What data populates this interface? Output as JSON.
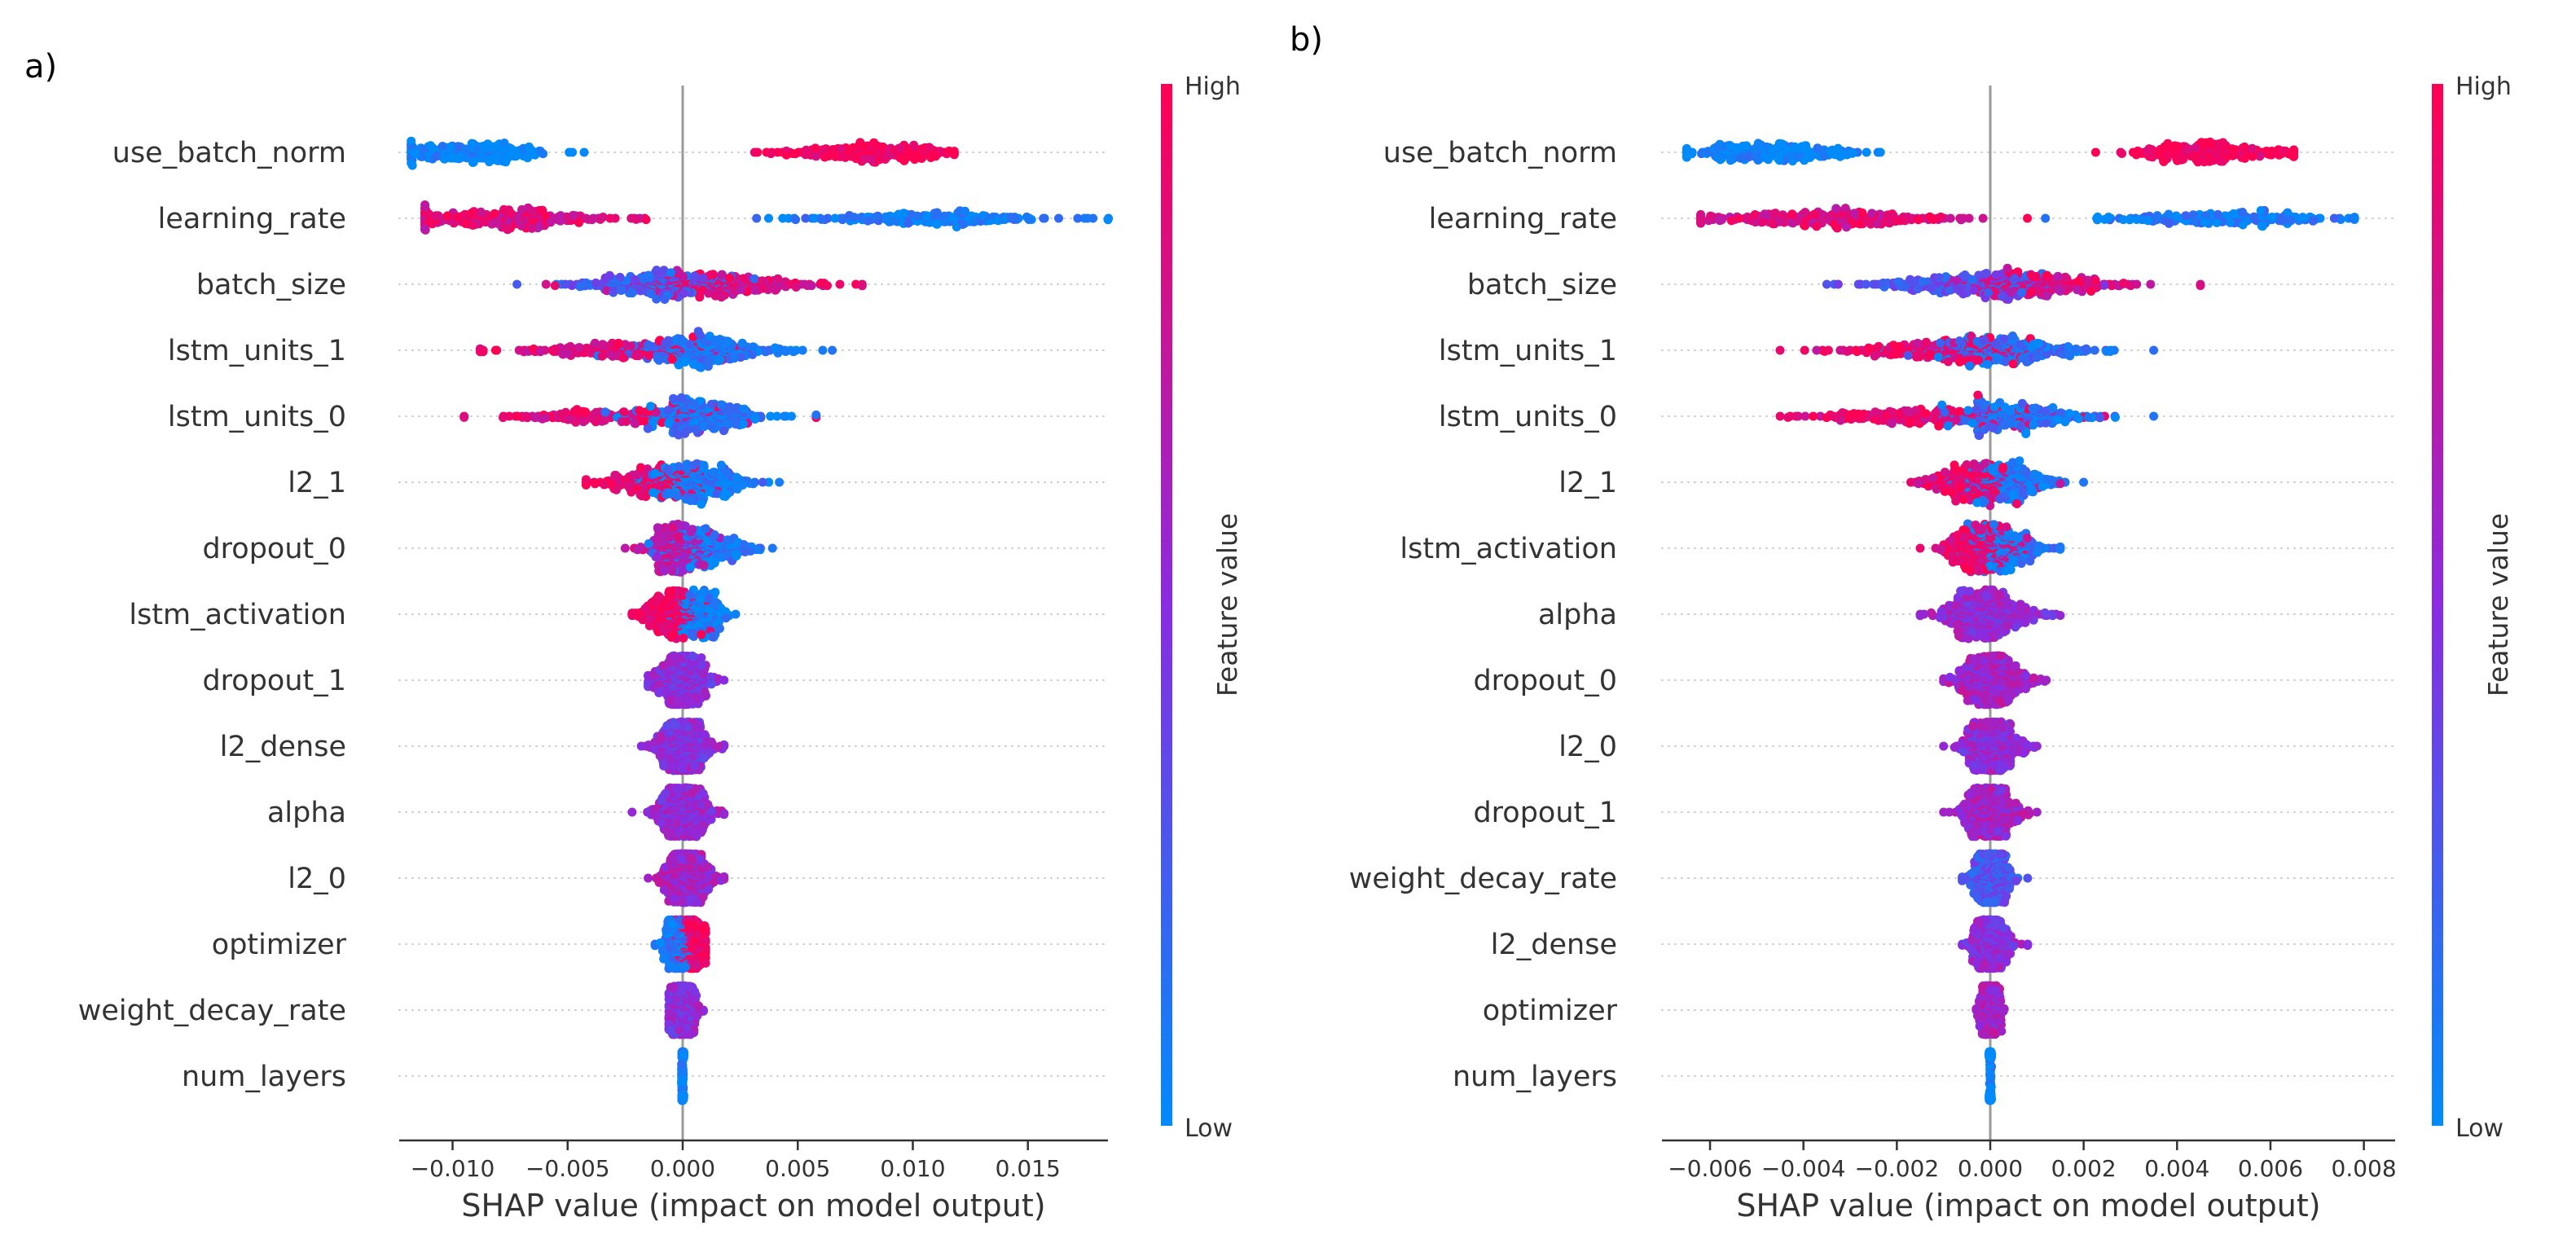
{
  "chart_data": [
    {
      "type": "scatter",
      "subtype": "shap-beeswarm",
      "panel_label": "a)",
      "xlabel": "SHAP value (impact on model output)",
      "xlim": [
        -0.0133,
        0.0175
      ],
      "xticks": [
        -0.01,
        -0.005,
        0.0,
        0.005,
        0.01,
        0.015
      ],
      "xtick_labels": [
        "−0.010",
        "−0.005",
        "0.000",
        "0.005",
        "0.010",
        "0.015"
      ],
      "features": [
        {
          "name": "use_batch_norm",
          "min": -0.0118,
          "max": 0.0118,
          "clusters": [
            {
              "center": -0.009,
              "spread": 0.0017,
              "color": 0.0,
              "weight": 0.5
            },
            {
              "center": 0.0083,
              "spread": 0.0018,
              "color": 1.0,
              "weight": 0.5
            }
          ]
        },
        {
          "name": "learning_rate",
          "min": -0.0112,
          "max": 0.0185,
          "clusters": [
            {
              "center": -0.0075,
              "spread": 0.0022,
              "color": 0.85,
              "weight": 0.58
            },
            {
              "center": 0.011,
              "spread": 0.0026,
              "color": 0.05,
              "weight": 0.42
            }
          ]
        },
        {
          "name": "batch_size",
          "min": -0.0072,
          "max": 0.0078,
          "clusters": [
            {
              "center": -0.0012,
              "spread": 0.0018,
              "color": 0.25,
              "weight": 0.5
            },
            {
              "center": 0.0018,
              "spread": 0.0022,
              "color": 0.85,
              "weight": 0.5
            }
          ]
        },
        {
          "name": "lstm_units_1",
          "min": -0.0088,
          "max": 0.0065,
          "clusters": [
            {
              "center": -0.0028,
              "spread": 0.0022,
              "color": 0.9,
              "weight": 0.4
            },
            {
              "center": 0.0008,
              "spread": 0.0016,
              "color": 0.12,
              "weight": 0.6
            }
          ]
        },
        {
          "name": "lstm_units_0",
          "min": -0.0095,
          "max": 0.0058,
          "clusters": [
            {
              "center": -0.0025,
              "spread": 0.0025,
              "color": 0.9,
              "weight": 0.4
            },
            {
              "center": 0.0008,
              "spread": 0.0014,
              "color": 0.12,
              "weight": 0.6
            }
          ]
        },
        {
          "name": "l2_1",
          "min": -0.0042,
          "max": 0.0042,
          "clusters": [
            {
              "center": -0.0014,
              "spread": 0.0011,
              "color": 0.92,
              "weight": 0.4
            },
            {
              "center": 0.0009,
              "spread": 0.001,
              "color": 0.08,
              "weight": 0.6
            }
          ]
        },
        {
          "name": "dropout_0",
          "min": -0.0025,
          "max": 0.0039,
          "clusters": [
            {
              "center": -0.0003,
              "spread": 0.0007,
              "color": 0.7,
              "weight": 0.6
            },
            {
              "center": 0.0013,
              "spread": 0.0009,
              "color": 0.1,
              "weight": 0.4
            }
          ]
        },
        {
          "name": "lstm_activation",
          "min": -0.0022,
          "max": 0.0023,
          "clusters": [
            {
              "center": -0.0006,
              "spread": 0.0006,
              "color": 0.95,
              "weight": 0.55
            },
            {
              "center": 0.0008,
              "spread": 0.0006,
              "color": 0.05,
              "weight": 0.45
            }
          ]
        },
        {
          "name": "dropout_1",
          "min": -0.0015,
          "max": 0.0018,
          "clusters": [
            {
              "center": 0.0,
              "spread": 0.0006,
              "color": 0.5,
              "weight": 1.0
            }
          ]
        },
        {
          "name": "l2_dense",
          "min": -0.0018,
          "max": 0.0018,
          "clusters": [
            {
              "center": 0.0,
              "spread": 0.0006,
              "color": 0.5,
              "weight": 1.0
            }
          ]
        },
        {
          "name": "alpha",
          "min": -0.0022,
          "max": 0.0018,
          "clusters": [
            {
              "center": 0.0,
              "spread": 0.0006,
              "color": 0.55,
              "weight": 1.0
            }
          ]
        },
        {
          "name": "l2_0",
          "min": -0.0015,
          "max": 0.0018,
          "clusters": [
            {
              "center": 0.0002,
              "spread": 0.0005,
              "color": 0.6,
              "weight": 1.0
            }
          ]
        },
        {
          "name": "optimizer",
          "min": -0.0012,
          "max": 0.001,
          "clusters": [
            {
              "center": -0.0003,
              "spread": 0.0003,
              "color": 0.1,
              "weight": 0.5
            },
            {
              "center": 0.0004,
              "spread": 0.0003,
              "color": 0.95,
              "weight": 0.5
            }
          ]
        },
        {
          "name": "weight_decay_rate",
          "min": -0.0006,
          "max": 0.0009,
          "clusters": [
            {
              "center": 0.0,
              "spread": 0.0003,
              "color": 0.5,
              "weight": 1.0
            }
          ]
        },
        {
          "name": "num_layers",
          "min": -5e-05,
          "max": 5e-05,
          "clusters": [
            {
              "center": 0.0,
              "spread": 2e-05,
              "color": 0.0,
              "weight": 1.0
            }
          ]
        }
      ],
      "colorbar": {
        "title": "Feature value",
        "high": "High",
        "low": "Low"
      }
    },
    {
      "type": "scatter",
      "subtype": "shap-beeswarm",
      "panel_label": "b)",
      "xlabel": "SHAP value (impact on model output)",
      "xlim": [
        -0.0068,
        0.0089
      ],
      "xticks": [
        -0.006,
        -0.004,
        -0.002,
        0.0,
        0.002,
        0.004,
        0.006,
        0.008
      ],
      "xtick_labels": [
        "−0.006",
        "−0.004",
        "−0.002",
        "0.000",
        "0.002",
        "0.004",
        "0.006",
        "0.008"
      ],
      "features": [
        {
          "name": "use_batch_norm",
          "min": -0.0065,
          "max": 0.0065,
          "clusters": [
            {
              "center": -0.0047,
              "spread": 0.0009,
              "color": 0.0,
              "weight": 0.5
            },
            {
              "center": 0.0047,
              "spread": 0.0009,
              "color": 1.0,
              "weight": 0.5
            }
          ]
        },
        {
          "name": "learning_rate",
          "min": -0.0062,
          "max": 0.0078,
          "clusters": [
            {
              "center": -0.0035,
              "spread": 0.0013,
              "color": 0.85,
              "weight": 0.58
            },
            {
              "center": 0.005,
              "spread": 0.0013,
              "color": 0.05,
              "weight": 0.42
            }
          ]
        },
        {
          "name": "batch_size",
          "min": -0.0035,
          "max": 0.0045,
          "clusters": [
            {
              "center": -0.0006,
              "spread": 0.001,
              "color": 0.3,
              "weight": 0.5
            },
            {
              "center": 0.001,
              "spread": 0.001,
              "color": 0.85,
              "weight": 0.5
            }
          ]
        },
        {
          "name": "lstm_units_1",
          "min": -0.0045,
          "max": 0.0035,
          "clusters": [
            {
              "center": -0.0012,
              "spread": 0.001,
              "color": 0.9,
              "weight": 0.45
            },
            {
              "center": 0.0004,
              "spread": 0.0009,
              "color": 0.15,
              "weight": 0.55
            }
          ]
        },
        {
          "name": "lstm_units_0",
          "min": -0.0045,
          "max": 0.0035,
          "clusters": [
            {
              "center": -0.0014,
              "spread": 0.0012,
              "color": 0.9,
              "weight": 0.45
            },
            {
              "center": 0.0005,
              "spread": 0.0008,
              "color": 0.12,
              "weight": 0.55
            }
          ]
        },
        {
          "name": "l2_1",
          "min": -0.0017,
          "max": 0.002,
          "clusters": [
            {
              "center": -0.0005,
              "spread": 0.0005,
              "color": 0.9,
              "weight": 0.45
            },
            {
              "center": 0.0004,
              "spread": 0.0005,
              "color": 0.1,
              "weight": 0.55
            }
          ]
        },
        {
          "name": "lstm_activation",
          "min": -0.0015,
          "max": 0.0015,
          "clusters": [
            {
              "center": -0.0003,
              "spread": 0.0004,
              "color": 0.9,
              "weight": 0.55
            },
            {
              "center": 0.0004,
              "spread": 0.0004,
              "color": 0.1,
              "weight": 0.45
            }
          ]
        },
        {
          "name": "alpha",
          "min": -0.0015,
          "max": 0.0015,
          "clusters": [
            {
              "center": -0.0001,
              "spread": 0.0005,
              "color": 0.55,
              "weight": 1.0
            }
          ]
        },
        {
          "name": "dropout_0",
          "min": -0.001,
          "max": 0.0012,
          "clusters": [
            {
              "center": 0.0,
              "spread": 0.0004,
              "color": 0.6,
              "weight": 1.0
            }
          ]
        },
        {
          "name": "l2_0",
          "min": -0.001,
          "max": 0.001,
          "clusters": [
            {
              "center": 0.0,
              "spread": 0.0003,
              "color": 0.55,
              "weight": 1.0
            }
          ]
        },
        {
          "name": "dropout_1",
          "min": -0.001,
          "max": 0.001,
          "clusters": [
            {
              "center": 0.0,
              "spread": 0.0003,
              "color": 0.6,
              "weight": 1.0
            }
          ]
        },
        {
          "name": "weight_decay_rate",
          "min": -0.0006,
          "max": 0.0008,
          "clusters": [
            {
              "center": 0.0,
              "spread": 0.0002,
              "color": 0.3,
              "weight": 1.0
            }
          ]
        },
        {
          "name": "l2_dense",
          "min": -0.0006,
          "max": 0.0008,
          "clusters": [
            {
              "center": 0.0,
              "spread": 0.0002,
              "color": 0.5,
              "weight": 1.0
            }
          ]
        },
        {
          "name": "optimizer",
          "min": -0.0003,
          "max": 0.0003,
          "clusters": [
            {
              "center": 0.0,
              "spread": 0.0001,
              "color": 0.6,
              "weight": 1.0
            }
          ]
        },
        {
          "name": "num_layers",
          "min": -3e-05,
          "max": 3e-05,
          "clusters": [
            {
              "center": 0.0,
              "spread": 1e-05,
              "color": 0.0,
              "weight": 1.0
            }
          ]
        }
      ],
      "colorbar": {
        "title": "Feature value",
        "high": "High",
        "low": "Low"
      }
    }
  ],
  "colors": {
    "low": "#008bfb",
    "mid": "#8a2be2",
    "high": "#ff0052",
    "zero_line": "#999999",
    "grid": "#cccccc",
    "axis": "#333333"
  }
}
